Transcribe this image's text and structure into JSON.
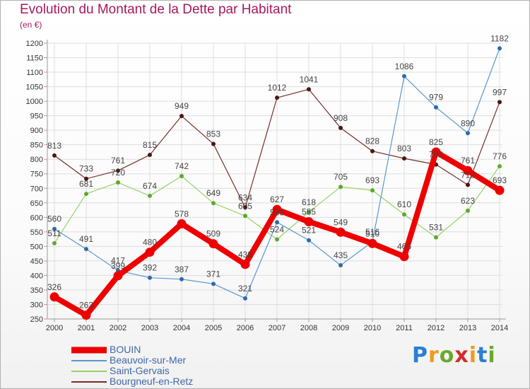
{
  "title": "Evolution du Montant de la Dette par Habitant",
  "unit": "(en €)",
  "brand": {
    "text": "Proxiti",
    "letter_colors": [
      "#2a7fd4",
      "#f09a1c",
      "#6aaa2a",
      "#d42a2a",
      "#f09a1c",
      "#2a7fd4",
      "#6aaa2a"
    ]
  },
  "colors": {
    "axis": "#9a9a9a",
    "grid": "#dddddd",
    "tick_text": "#333333",
    "label_text": "#444444",
    "accent_ticks": "#d8103c"
  },
  "chart_data": {
    "type": "line",
    "x": [
      "2000",
      "2001",
      "2002",
      "2003",
      "2004",
      "2005",
      "2006",
      "2007",
      "2008",
      "2009",
      "2010",
      "2011",
      "2012",
      "2013",
      "2014"
    ],
    "ylim": [
      250,
      1200
    ],
    "ytick_step": 50,
    "grid": true,
    "legend_position": "bottom-left",
    "series": [
      {
        "name": "BOUIN",
        "color": "#ee0000",
        "values": [
          326,
          263,
          399,
          480,
          578,
          509,
          438,
          627,
          585,
          549,
          510,
          465,
          825,
          761,
          693
        ]
      },
      {
        "name": "Beauvoir-sur-Mer",
        "color": "#5a96d2",
        "values": [
          560,
          491,
          417,
          392,
          387,
          371,
          321,
          583,
          521,
          435,
          516,
          1086,
          979,
          890,
          1182
        ]
      },
      {
        "name": "Saint-Gervais",
        "color": "#96d264",
        "values": [
          511,
          681,
          720,
          674,
          742,
          649,
          605,
          524,
          618,
          705,
          693,
          610,
          531,
          623,
          776
        ]
      },
      {
        "name": "Bourgneuf-en-Retz",
        "color": "#782d28",
        "values": [
          813,
          733,
          761,
          815,
          949,
          853,
          634,
          1012,
          1041,
          908,
          828,
          803,
          782,
          712,
          997
        ]
      }
    ]
  }
}
